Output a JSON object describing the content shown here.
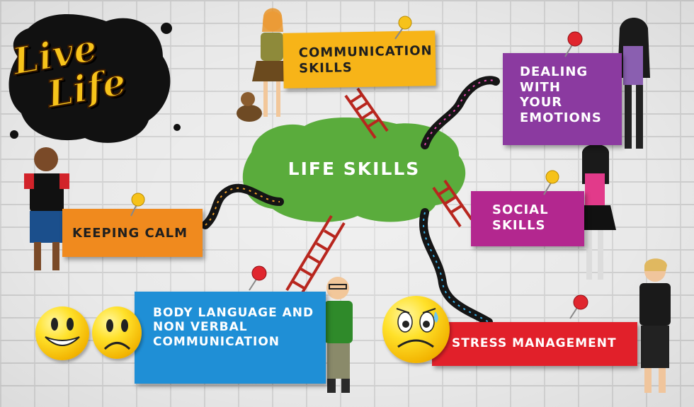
{
  "center": {
    "title": "LIFE SKILLS"
  },
  "logo": {
    "line1": "Live",
    "line2": "Life"
  },
  "cards": {
    "communication": "COMMUNICATION\nSKILLS",
    "emotions": "DEALING\nWITH\nYOUR\nEMOTIONS",
    "calm": "KEEPING CALM",
    "social": "SOCIAL\nSKILLS",
    "body_language": "BODY LANGUAGE AND\nNON VERBAL\nCOMMUNICATION",
    "stress": "STRESS MANAGEMENT"
  },
  "colors": {
    "communication": "#f7b418",
    "emotions": "#8b3aa0",
    "calm": "#f08a1e",
    "social": "#b3278f",
    "body_language": "#1f8fd6",
    "stress": "#e1202a",
    "blob": "#5aac3c",
    "ladder": "#b8261e"
  },
  "icons": [
    "push-pin-icon",
    "smiley-happy-icon",
    "smiley-sad-icon",
    "worried-face-icon",
    "snake-icon",
    "ladder-icon"
  ]
}
